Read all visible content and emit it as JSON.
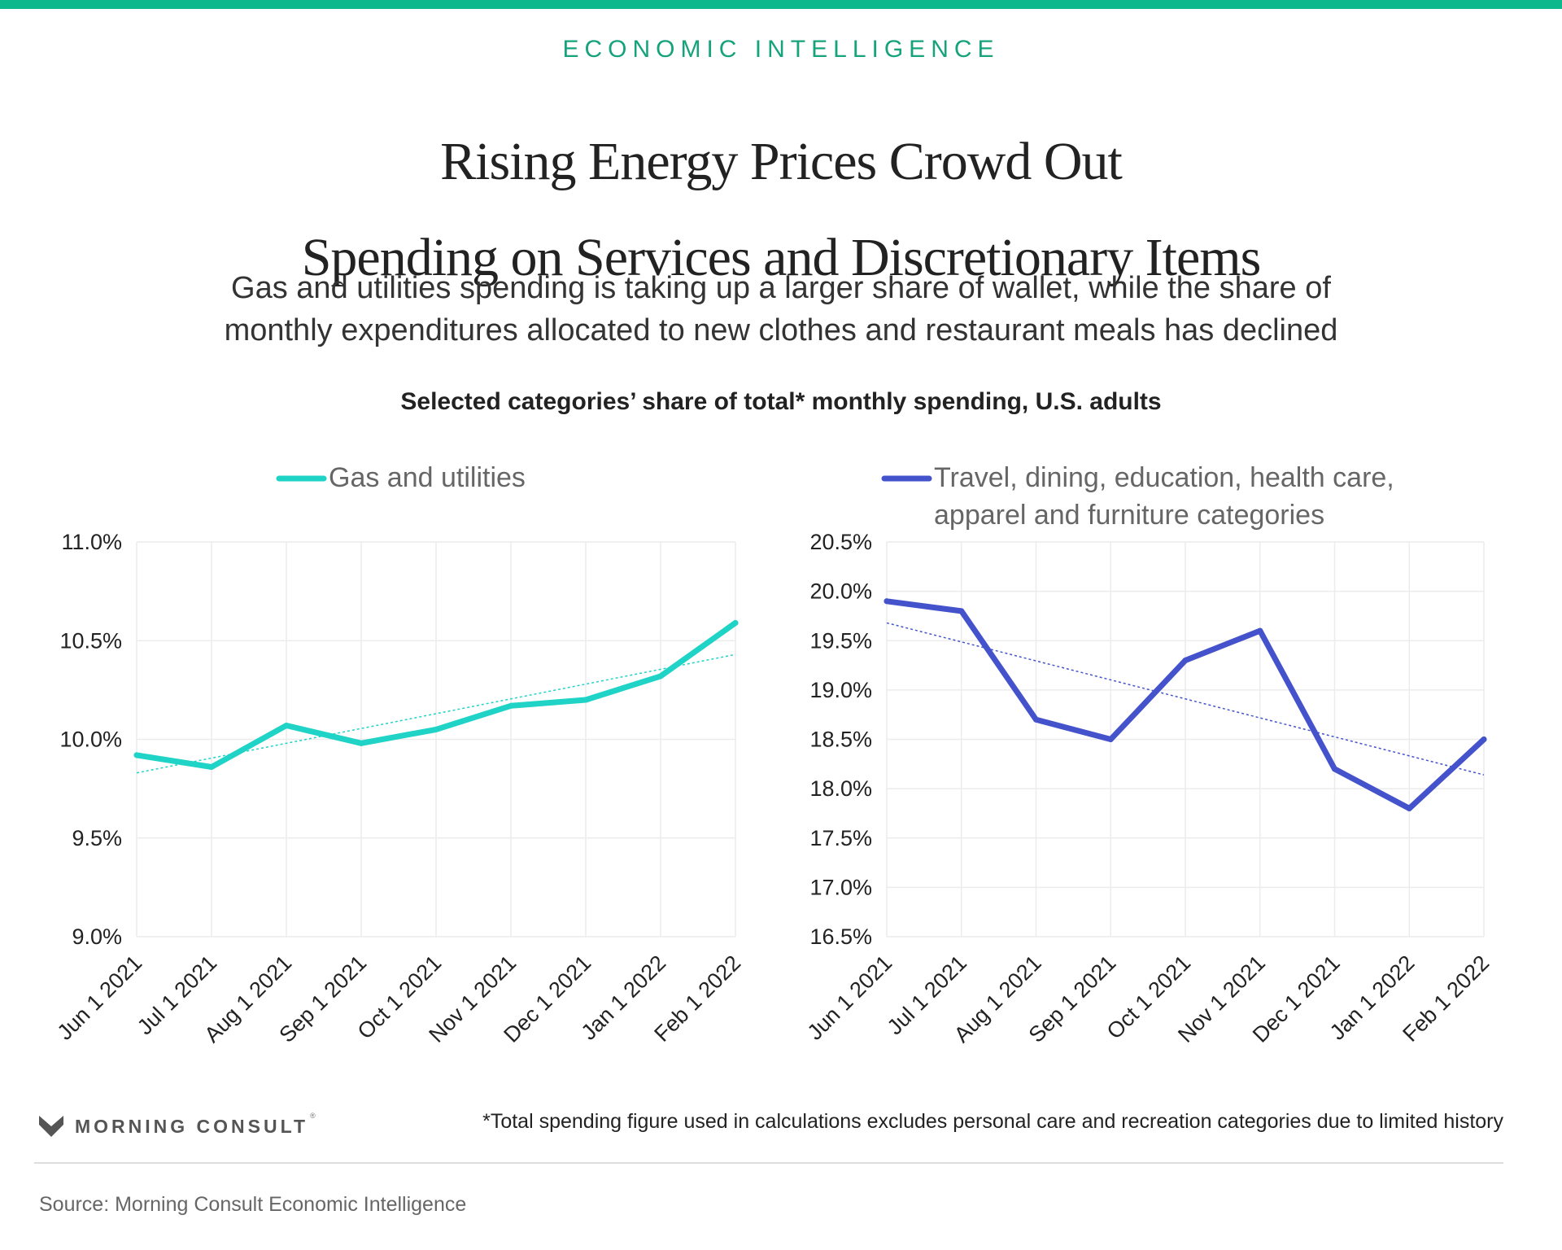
{
  "header": {
    "kicker": "ECONOMIC INTELLIGENCE",
    "title_line1": "Rising Energy Prices Crowd Out",
    "title_line2": "Spending on Services and Discretionary Items",
    "subtitle_line1": "Gas and utilities spending is taking up a larger share of wallet, while the share of",
    "subtitle_line2": "monthly expenditures allocated to new clothes and restaurant meals has declined",
    "chart_title": "Selected categories’ share of total* monthly spending, U.S. adults"
  },
  "colors": {
    "brand_bar": "#0cb88c",
    "kicker": "#16a37c",
    "gas_series": "#1fd3c6",
    "travel_series": "#4453cc",
    "grid": "#ececec",
    "axis_text": "#222222",
    "legend_text": "#666666"
  },
  "chart_data": [
    {
      "type": "line",
      "legend": "Gas and utilities",
      "x": [
        "Jun 1 2021",
        "Jul 1 2021",
        "Aug 1 2021",
        "Sep 1 2021",
        "Oct 1 2021",
        "Nov 1 2021",
        "Dec 1 2021",
        "Jan 1 2022",
        "Feb 1 2022"
      ],
      "series": [
        {
          "name": "Gas and utilities",
          "values": [
            9.92,
            9.86,
            10.07,
            9.98,
            10.05,
            10.17,
            10.2,
            10.32,
            10.59
          ]
        }
      ],
      "trendline": [
        9.83,
        10.43
      ],
      "yticks": [
        "9.0%",
        "9.5%",
        "10.0%",
        "10.5%",
        "11.0%"
      ],
      "ylim": [
        9.0,
        11.0
      ],
      "grid": true,
      "legend_position": "top"
    },
    {
      "type": "line",
      "legend": "Travel, dining, education, health care, apparel and furniture categories",
      "legend_line1": "Travel, dining, education, health care,",
      "legend_line2": "apparel and furniture categories",
      "x": [
        "Jun 1 2021",
        "Jul 1 2021",
        "Aug 1 2021",
        "Sep 1 2021",
        "Oct 1 2021",
        "Nov 1 2021",
        "Dec 1 2021",
        "Jan 1 2022",
        "Feb 1 2022"
      ],
      "series": [
        {
          "name": "Travel, dining, education, health care, apparel and furniture categories",
          "values": [
            19.9,
            19.8,
            18.7,
            18.5,
            19.3,
            19.6,
            18.2,
            17.8,
            18.5
          ]
        }
      ],
      "trendline": [
        19.68,
        18.14
      ],
      "yticks": [
        "16.5%",
        "17.0%",
        "17.5%",
        "18.0%",
        "18.5%",
        "19.0%",
        "19.5%",
        "20.0%",
        "20.5%"
      ],
      "ylim": [
        16.5,
        20.5
      ],
      "grid": true,
      "legend_position": "top"
    }
  ],
  "footer": {
    "logo_text": "MORNING CONSULT",
    "footnote": "*Total spending figure used in calculations excludes personal care and recreation categories due to limited history",
    "source": "Source: Morning Consult Economic Intelligence"
  }
}
